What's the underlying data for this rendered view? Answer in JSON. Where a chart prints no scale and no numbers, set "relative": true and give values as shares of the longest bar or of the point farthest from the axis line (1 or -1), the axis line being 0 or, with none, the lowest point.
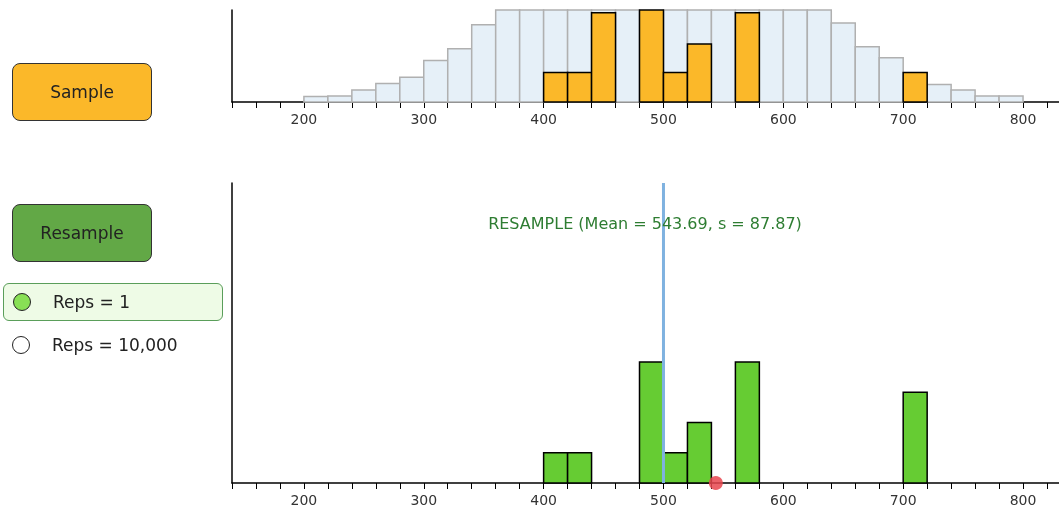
{
  "chart_data": [
    {
      "type": "bar",
      "relative": true,
      "tick_labels": "x",
      "grid": false,
      "x": [
        210,
        230,
        250,
        270,
        290,
        310,
        330,
        350,
        370,
        390,
        410,
        430,
        450,
        470,
        490,
        510,
        530,
        550,
        570,
        590,
        610,
        630,
        650,
        670,
        690,
        710,
        730,
        750,
        770,
        790
      ],
      "series": [
        {
          "color": "#e6f0f8",
          "values": [
            0.06,
            0.065,
            0.13,
            0.2,
            0.27,
            0.45,
            0.58,
            0.84,
            1,
            1,
            1,
            1,
            1,
            1,
            null,
            1,
            1,
            1,
            1,
            1,
            1,
            1,
            0.86,
            0.6,
            0.48,
            null,
            0.19,
            0.13,
            0.065,
            0.065
          ]
        },
        {
          "color": "#fbb829",
          "values": [
            null,
            null,
            null,
            null,
            null,
            null,
            null,
            null,
            null,
            null,
            0.32,
            0.32,
            0.97,
            null,
            1,
            0.32,
            0.63,
            null,
            0.97,
            null,
            null,
            null,
            null,
            null,
            null,
            0.32,
            null,
            null,
            null,
            null
          ]
        }
      ],
      "xlim": [
        140,
        830
      ],
      "xticks": [
        {
          "value": 140,
          "label": null
        },
        {
          "value": 160,
          "label": null
        },
        {
          "value": 180,
          "label": null
        },
        200,
        {
          "value": 220,
          "label": null
        },
        {
          "value": 240,
          "label": null
        },
        {
          "value": 260,
          "label": null
        },
        {
          "value": 280,
          "label": null
        },
        300,
        {
          "value": 320,
          "label": null
        },
        {
          "value": 340,
          "label": null
        },
        {
          "value": 360,
          "label": null
        },
        {
          "value": 380,
          "label": null
        },
        400,
        {
          "value": 420,
          "label": null
        },
        {
          "value": 440,
          "label": null
        },
        {
          "value": 460,
          "label": null
        },
        {
          "value": 480,
          "label": null
        },
        500,
        {
          "value": 520,
          "label": null
        },
        {
          "value": 540,
          "label": null
        },
        {
          "value": 560,
          "label": null
        },
        {
          "value": 580,
          "label": null
        },
        600,
        {
          "value": 620,
          "label": null
        },
        {
          "value": 640,
          "label": null
        },
        {
          "value": 660,
          "label": null
        },
        {
          "value": 680,
          "label": null
        },
        700,
        {
          "value": 720,
          "label": null
        },
        {
          "value": 740,
          "label": null
        },
        {
          "value": 760,
          "label": null
        },
        {
          "value": 780,
          "label": null
        },
        800,
        {
          "value": 820,
          "label": null
        }
      ]
    },
    {
      "type": "bar",
      "relative": true,
      "tick_labels": "x",
      "grid": false,
      "title": "RESAMPLE (Mean = 543.69, s = 87.87)",
      "x": [
        410,
        430,
        490,
        510,
        530,
        570,
        710
      ],
      "series": [
        {
          "color": "#66cc33",
          "values": [
            0.25,
            0.25,
            1,
            0.25,
            0.5,
            1,
            0.75
          ]
        },
        {
          "type": "scatter",
          "color": "#e8474f",
          "x": [
            543.69
          ],
          "values": [
            0
          ]
        }
      ],
      "ref_lines": [
        {
          "axis": "x",
          "value": 500,
          "color": "#7fb2e0"
        }
      ],
      "xlim": [
        140,
        830
      ],
      "xticks": [
        {
          "value": 140,
          "label": null
        },
        {
          "value": 160,
          "label": null
        },
        {
          "value": 180,
          "label": null
        },
        200,
        {
          "value": 220,
          "label": null
        },
        {
          "value": 240,
          "label": null
        },
        {
          "value": 260,
          "label": null
        },
        {
          "value": 280,
          "label": null
        },
        300,
        {
          "value": 320,
          "label": null
        },
        {
          "value": 340,
          "label": null
        },
        {
          "value": 360,
          "label": null
        },
        {
          "value": 380,
          "label": null
        },
        400,
        {
          "value": 420,
          "label": null
        },
        {
          "value": 440,
          "label": null
        },
        {
          "value": 460,
          "label": null
        },
        {
          "value": 480,
          "label": null
        },
        500,
        {
          "value": 520,
          "label": null
        },
        {
          "value": 540,
          "label": null
        },
        {
          "value": 560,
          "label": null
        },
        {
          "value": 580,
          "label": null
        },
        600,
        {
          "value": 620,
          "label": null
        },
        {
          "value": 640,
          "label": null
        },
        {
          "value": 660,
          "label": null
        },
        {
          "value": 680,
          "label": null
        },
        700,
        {
          "value": 720,
          "label": null
        },
        {
          "value": 740,
          "label": null
        },
        {
          "value": 760,
          "label": null
        },
        {
          "value": 780,
          "label": null
        },
        800,
        {
          "value": 820,
          "label": null
        }
      ]
    },
    {
      "type": "other",
      "annotations": [
        "Sample",
        "Resample",
        "Reps = 1",
        "Reps = 10,000"
      ]
    }
  ]
}
